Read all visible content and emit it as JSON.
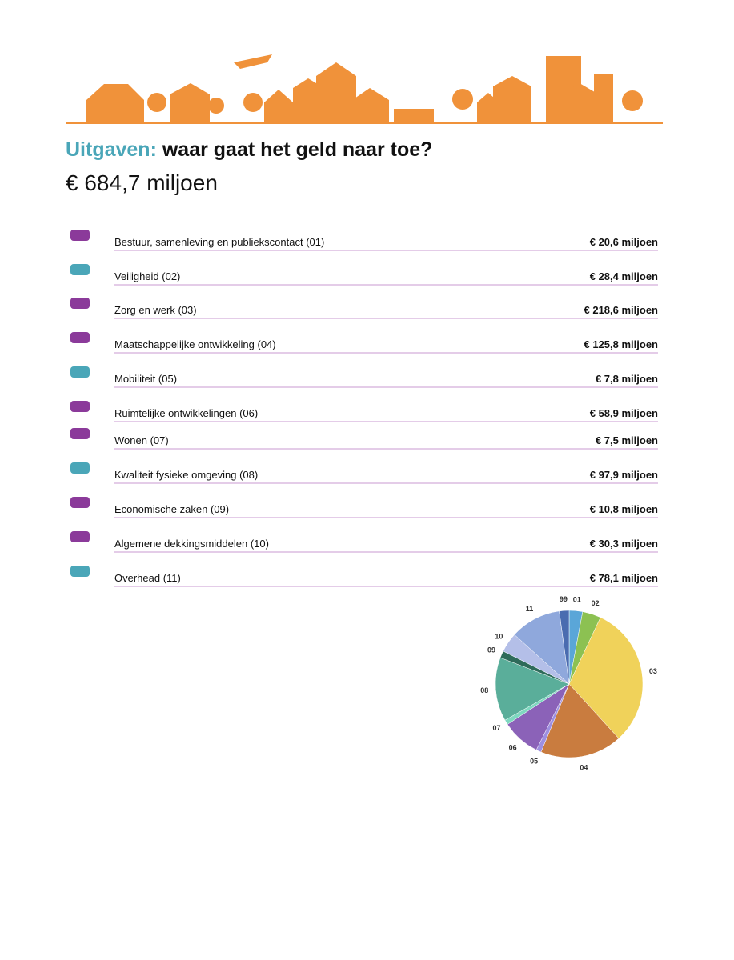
{
  "header": {
    "title_highlight": "Uitgaven:",
    "title": "waar gaat het geld naar toe?",
    "total": "€ 684,7 miljoen"
  },
  "items": [
    {
      "label": "Bestuur, samenleving en publiekscontact (01)",
      "amount": "€ 20,6 miljoen"
    },
    {
      "label": "Veiligheid (02)",
      "amount": "€ 28,4 miljoen"
    },
    {
      "label": "Zorg en werk (03)",
      "amount": "€ 218,6 miljoen"
    },
    {
      "label": "Maatschappelijke ontwikkeling (04)",
      "amount": "€ 125,8 miljoen"
    },
    {
      "label": "Mobiliteit (05)",
      "amount": "€ 7,8 miljoen"
    },
    {
      "label": "Ruimtelijke ontwikkelingen (06)",
      "amount": "€ 58,9 miljoen"
    },
    {
      "label": "Wonen (07)",
      "amount": "€ 7,5 miljoen"
    },
    {
      "label": "Kwaliteit fysieke omgeving (08)",
      "amount": "€ 97,9 miljoen"
    },
    {
      "label": "Economische zaken (09)",
      "amount": "€ 10,8 miljoen"
    },
    {
      "label": "Algemene dekkingsmiddelen (10)",
      "amount": "€ 30,3 miljoen"
    },
    {
      "label": "Overhead (11)",
      "amount": "€ 78,1 miljoen"
    }
  ],
  "chart_data": {
    "type": "pie",
    "categories": [
      "01",
      "02",
      "03",
      "04",
      "05",
      "06",
      "07",
      "08",
      "09",
      "10",
      "11",
      "99"
    ],
    "values": [
      20.6,
      28.4,
      218.6,
      125.8,
      7.8,
      58.9,
      7.5,
      97.9,
      10.8,
      30.3,
      78.1,
      15
    ],
    "colors": [
      "#5aa6d8",
      "#8cc152",
      "#f0d25a",
      "#c97c3f",
      "#9e8fe0",
      "#8b62b8",
      "#7fd8c0",
      "#5aae9a",
      "#2e6b5a",
      "#b4bfe8",
      "#8fa8dc",
      "#4a6cb0"
    ]
  }
}
